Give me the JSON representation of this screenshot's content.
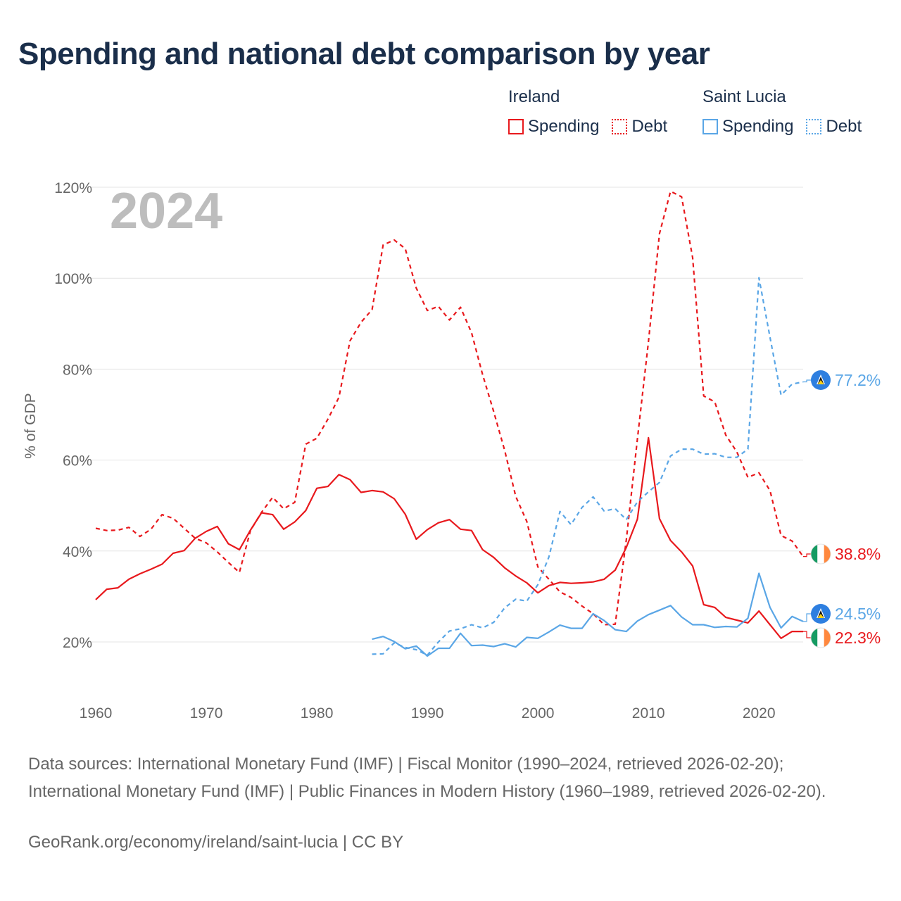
{
  "title": "Spending and national debt comparison by year",
  "legend": {
    "groups": [
      {
        "country": "Ireland",
        "color": "#e8191d",
        "items": [
          {
            "label": "Spending",
            "style": "solid"
          },
          {
            "label": "Debt",
            "style": "dotted"
          }
        ]
      },
      {
        "country": "Saint Lucia",
        "color": "#5aa6e6",
        "items": [
          {
            "label": "Spending",
            "style": "solid"
          },
          {
            "label": "Debt",
            "style": "dotted"
          }
        ]
      }
    ]
  },
  "year_watermark": "2024",
  "footer": {
    "sources": "Data sources: International Monetary Fund (IMF) | Fiscal Monitor (1990–2024, retrieved 2026-02-20); International Monetary Fund (IMF) | Public Finances in Modern History (1960–1989, retrieved 2026-02-20).",
    "url": "GeoRank.org/economy/ireland/saint-lucia | CC BY"
  },
  "chart_data": {
    "type": "line",
    "title": "Spending and national debt comparison by year",
    "ylabel": "% of GDP",
    "xlabel": "",
    "xlim": [
      1960,
      2024
    ],
    "ylim": [
      10,
      123
    ],
    "x_ticks": [
      1960,
      1970,
      1980,
      1990,
      2000,
      2010,
      2020
    ],
    "y_ticks": [
      20,
      40,
      60,
      80,
      100,
      120
    ],
    "y_tick_labels": [
      "20%",
      "40%",
      "60%",
      "80%",
      "100%",
      "120%"
    ],
    "x_tick_labels": [
      "1960",
      "1970",
      "1980",
      "1990",
      "2000",
      "2010",
      "2020"
    ],
    "grid": true,
    "series": [
      {
        "name": "Ireland Debt",
        "country": "Ireland",
        "color": "#e8191d",
        "dash": "6,5",
        "x": [
          1960,
          1961,
          1962,
          1963,
          1964,
          1965,
          1966,
          1967,
          1968,
          1969,
          1970,
          1971,
          1972,
          1973,
          1974,
          1975,
          1976,
          1977,
          1978,
          1979,
          1980,
          1981,
          1982,
          1983,
          1984,
          1985,
          1986,
          1987,
          1988,
          1989,
          1990,
          1991,
          1992,
          1993,
          1994,
          1995,
          1996,
          1997,
          1998,
          1999,
          2000,
          2001,
          2002,
          2003,
          2004,
          2005,
          2006,
          2007,
          2008,
          2009,
          2010,
          2011,
          2012,
          2013,
          2014,
          2015,
          2016,
          2017,
          2018,
          2019,
          2020,
          2021,
          2022,
          2023,
          2024
        ],
        "values": [
          45,
          44.5,
          44.6,
          45.2,
          43.2,
          44.8,
          48,
          47.2,
          45,
          42.8,
          41.8,
          39.8,
          37.5,
          35.3,
          44.5,
          48.5,
          51.8,
          49.3,
          50.7,
          63.5,
          64.8,
          69,
          73.8,
          86.2,
          90.3,
          93.1,
          107.3,
          108.4,
          106.5,
          97.8,
          92.9,
          93.8,
          90.8,
          93.6,
          88,
          78.8,
          70.7,
          62.1,
          52,
          46.5,
          36.5,
          33.8,
          31,
          29.8,
          27.9,
          26.2,
          23.8,
          23.9,
          42.5,
          64.6,
          86,
          109.8,
          119.1,
          117.9,
          104.5,
          74.1,
          72.8,
          65.5,
          61.8,
          56.2,
          57.2,
          53.3,
          43.4,
          42.2,
          38.8
        ],
        "end_label": "38.8%",
        "flag": "ireland"
      },
      {
        "name": "Ireland Spending",
        "country": "Ireland",
        "color": "#e8191d",
        "dash": "",
        "x": [
          1960,
          1961,
          1962,
          1963,
          1964,
          1965,
          1966,
          1967,
          1968,
          1969,
          1970,
          1971,
          1972,
          1973,
          1974,
          1975,
          1976,
          1977,
          1978,
          1979,
          1980,
          1981,
          1982,
          1983,
          1984,
          1985,
          1986,
          1987,
          1988,
          1989,
          1990,
          1991,
          1992,
          1993,
          1994,
          1995,
          1996,
          1997,
          1998,
          1999,
          2000,
          2001,
          2002,
          2003,
          2004,
          2005,
          2006,
          2007,
          2008,
          2009,
          2010,
          2011,
          2012,
          2013,
          2014,
          2015,
          2016,
          2017,
          2018,
          2019,
          2020,
          2021,
          2022,
          2023,
          2024
        ],
        "values": [
          29.3,
          31.6,
          31.9,
          33.8,
          35,
          36,
          37.1,
          39.5,
          40.1,
          42.8,
          44.3,
          45.4,
          41.6,
          40.3,
          44.6,
          48.4,
          48,
          44.8,
          46.4,
          48.9,
          53.8,
          54.2,
          56.8,
          55.7,
          52.9,
          53.3,
          53,
          51.5,
          48.1,
          42.6,
          44.7,
          46.2,
          46.9,
          44.8,
          44.5,
          40.3,
          38.6,
          36.3,
          34.5,
          33,
          30.8,
          32.4,
          33.1,
          32.9,
          33,
          33.2,
          33.8,
          35.8,
          40.8,
          47,
          64.9,
          47.1,
          42.3,
          39.8,
          36.7,
          28.2,
          27.6,
          25.4,
          24.8,
          24.2,
          26.8,
          23.8,
          20.8,
          22.3,
          22.3
        ],
        "end_label": "22.3%",
        "flag": "ireland"
      },
      {
        "name": "Saint Lucia Debt",
        "country": "Saint Lucia",
        "color": "#5aa6e6",
        "dash": "6,5",
        "x": [
          1985,
          1986,
          1987,
          1988,
          1989,
          1990,
          1991,
          1992,
          1993,
          1994,
          1995,
          1996,
          1997,
          1998,
          1999,
          2000,
          2001,
          2002,
          2003,
          2004,
          2005,
          2006,
          2007,
          2008,
          2009,
          2010,
          2011,
          2012,
          2013,
          2014,
          2015,
          2016,
          2017,
          2018,
          2019,
          2020,
          2021,
          2022,
          2023,
          2024
        ],
        "values": [
          17.3,
          17.4,
          19.8,
          18.8,
          18.3,
          17.1,
          20,
          22.4,
          22.9,
          23.8,
          23.1,
          24.3,
          27.5,
          29.4,
          29,
          32.6,
          38.7,
          48.7,
          45.8,
          49.6,
          51.9,
          48.8,
          49.3,
          46.9,
          50.8,
          53,
          55.1,
          60.9,
          62.4,
          62.4,
          61.3,
          61.4,
          60.6,
          60.6,
          62.4,
          100.1,
          87,
          74.3,
          76.7,
          77.2
        ],
        "end_label": "77.2%",
        "flag": "saint-lucia"
      },
      {
        "name": "Saint Lucia Spending",
        "country": "Saint Lucia",
        "color": "#5aa6e6",
        "dash": "",
        "x": [
          1985,
          1986,
          1987,
          1988,
          1989,
          1990,
          1991,
          1992,
          1993,
          1994,
          1995,
          1996,
          1997,
          1998,
          1999,
          2000,
          2001,
          2002,
          2003,
          2004,
          2005,
          2006,
          2007,
          2008,
          2009,
          2010,
          2011,
          2012,
          2013,
          2014,
          2015,
          2016,
          2017,
          2018,
          2019,
          2020,
          2021,
          2022,
          2023,
          2024
        ],
        "values": [
          20.6,
          21.2,
          20.1,
          18.5,
          19.1,
          16.9,
          18.6,
          18.6,
          21.9,
          19.2,
          19.3,
          19,
          19.6,
          18.9,
          21,
          20.8,
          22.2,
          23.7,
          23,
          23,
          26.2,
          24.7,
          22.7,
          22.3,
          24.6,
          26,
          27,
          28,
          25.5,
          23.8,
          23.8,
          23.2,
          23.4,
          23.3,
          25.2,
          35.1,
          27.6,
          23.1,
          25.6,
          24.5
        ],
        "end_label": "24.5%",
        "flag": "saint-lucia"
      }
    ]
  }
}
